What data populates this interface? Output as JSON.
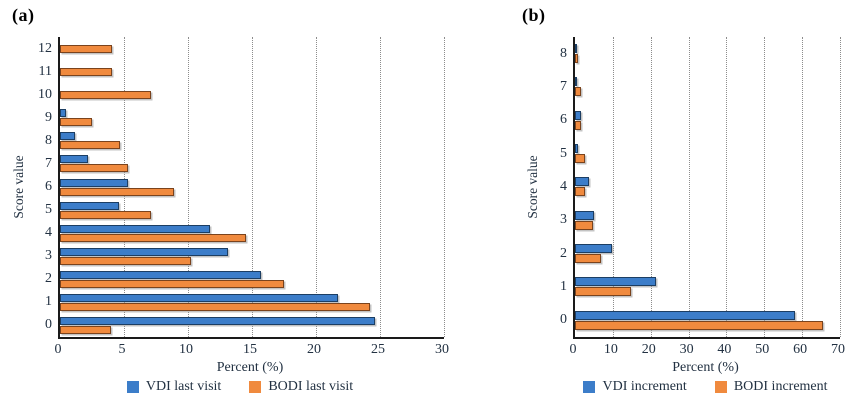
{
  "chart_data": [
    {
      "type": "bar",
      "orientation": "horizontal",
      "panel_label": "(a)",
      "xlabel": "Percent (%)",
      "ylabel": "Score value",
      "xlim": [
        0,
        30
      ],
      "xticks": [
        0,
        5,
        10,
        15,
        20,
        25,
        30
      ],
      "grid": "vertical-dotted",
      "legend_position": "bottom",
      "categories_order": "top-to-bottom",
      "categories": [
        12,
        11,
        10,
        9,
        8,
        7,
        6,
        5,
        4,
        3,
        2,
        1,
        0
      ],
      "series": [
        {
          "name": "VDI last visit",
          "color": "#3C7DC9",
          "edge_color": "#1c3e63",
          "values": [
            0,
            0,
            0,
            0.5,
            1.2,
            2.2,
            5.3,
            4.6,
            11.7,
            13.1,
            15.7,
            21.7,
            24.6
          ]
        },
        {
          "name": "BODI last visit",
          "color": "#F08A3E",
          "edge_color": "#7a431d",
          "values": [
            4.1,
            4.1,
            7.1,
            2.5,
            4.7,
            5.3,
            8.9,
            7.1,
            14.5,
            10.2,
            17.5,
            24.2,
            4.0
          ]
        }
      ]
    },
    {
      "type": "bar",
      "orientation": "horizontal",
      "panel_label": "(b)",
      "xlabel": "Percent (%)",
      "ylabel": "Score value",
      "xlim": [
        0,
        70
      ],
      "xticks": [
        0,
        10,
        20,
        30,
        40,
        50,
        60,
        70
      ],
      "grid": "vertical-dotted",
      "legend_position": "bottom",
      "categories_order": "top-to-bottom",
      "categories": [
        8,
        7,
        6,
        5,
        4,
        3,
        2,
        1,
        0
      ],
      "series": [
        {
          "name": "VDI increment",
          "color": "#3C7DC9",
          "edge_color": "#1c3e63",
          "values": [
            0.2,
            0.5,
            1.7,
            0.7,
            3.8,
            5.0,
            9.8,
            21.3,
            58.0
          ]
        },
        {
          "name": "BODI increment",
          "color": "#F08A3E",
          "edge_color": "#7a431d",
          "values": [
            0.9,
            1.6,
            1.5,
            2.6,
            2.7,
            4.8,
            6.8,
            14.8,
            65.5
          ]
        }
      ]
    }
  ]
}
